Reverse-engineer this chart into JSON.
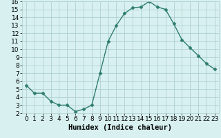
{
  "x": [
    0,
    1,
    2,
    3,
    4,
    5,
    6,
    7,
    8,
    9,
    10,
    11,
    12,
    13,
    14,
    15,
    16,
    17,
    18,
    19,
    20,
    21,
    22,
    23
  ],
  "y": [
    5.5,
    4.5,
    4.5,
    3.5,
    3.0,
    3.0,
    2.2,
    2.5,
    3.0,
    7.0,
    11.0,
    13.0,
    14.5,
    15.2,
    15.3,
    16.0,
    15.3,
    15.0,
    13.2,
    11.2,
    10.2,
    9.2,
    8.2,
    7.5
  ],
  "line_color": "#2e7d6e",
  "marker": "D",
  "marker_size": 2.5,
  "bg_color": "#d8f0f0",
  "grid_color": "#b0d0d0",
  "xlabel": "Humidex (Indice chaleur)",
  "xlim": [
    -0.5,
    23.5
  ],
  "ylim": [
    2,
    16
  ],
  "yticks": [
    2,
    3,
    4,
    5,
    6,
    7,
    8,
    9,
    10,
    11,
    12,
    13,
    14,
    15,
    16
  ],
  "xticks": [
    0,
    1,
    2,
    3,
    4,
    5,
    6,
    7,
    8,
    9,
    10,
    11,
    12,
    13,
    14,
    15,
    16,
    17,
    18,
    19,
    20,
    21,
    22,
    23
  ],
  "tick_fontsize": 6.5,
  "xlabel_fontsize": 7.5
}
